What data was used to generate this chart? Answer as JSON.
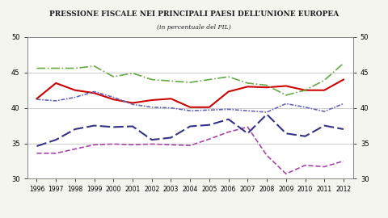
{
  "title": "PRESSIONE FISCALE NEI PRINCIPALI PAESI DELL’UNIONE EUROPEA",
  "subtitle": "(in percentuale del PIL)",
  "years": [
    1996,
    1997,
    1998,
    1999,
    2000,
    2001,
    2002,
    2003,
    2004,
    2005,
    2006,
    2007,
    2008,
    2009,
    2010,
    2011,
    2012
  ],
  "italia": [
    41.3,
    43.5,
    42.5,
    42.1,
    41.2,
    40.7,
    41.1,
    41.3,
    40.1,
    40.1,
    42.3,
    43.0,
    42.9,
    43.1,
    42.5,
    42.5,
    44.0
  ],
  "germania": [
    41.2,
    41.0,
    41.5,
    42.3,
    41.5,
    40.5,
    40.1,
    40.0,
    39.6,
    39.7,
    39.8,
    39.6,
    39.4,
    40.6,
    40.1,
    39.5,
    40.6
  ],
  "spagna": [
    33.6,
    33.6,
    34.2,
    34.8,
    34.9,
    34.8,
    34.9,
    34.8,
    34.7,
    35.6,
    36.6,
    37.3,
    33.3,
    30.7,
    31.9,
    31.7,
    32.5
  ],
  "francia": [
    45.6,
    45.6,
    45.6,
    45.9,
    44.4,
    44.9,
    44.0,
    43.8,
    43.6,
    44.0,
    44.4,
    43.5,
    43.2,
    41.8,
    42.5,
    43.9,
    46.3
  ],
  "regno_unito": [
    34.6,
    35.5,
    37.0,
    37.5,
    37.3,
    37.4,
    35.5,
    35.8,
    37.4,
    37.6,
    38.4,
    36.4,
    39.1,
    36.4,
    36.0,
    37.5,
    37.0
  ],
  "ylim": [
    30,
    50
  ],
  "yticks": [
    30,
    35,
    40,
    45,
    50
  ],
  "colors": {
    "italia": "#cc0000",
    "germania": "#6666bb",
    "spagna": "#aa44aa",
    "francia": "#66aa44",
    "regno_unito": "#333388"
  },
  "bg_color": "#f5f5f0",
  "plot_bg": "#ffffff"
}
